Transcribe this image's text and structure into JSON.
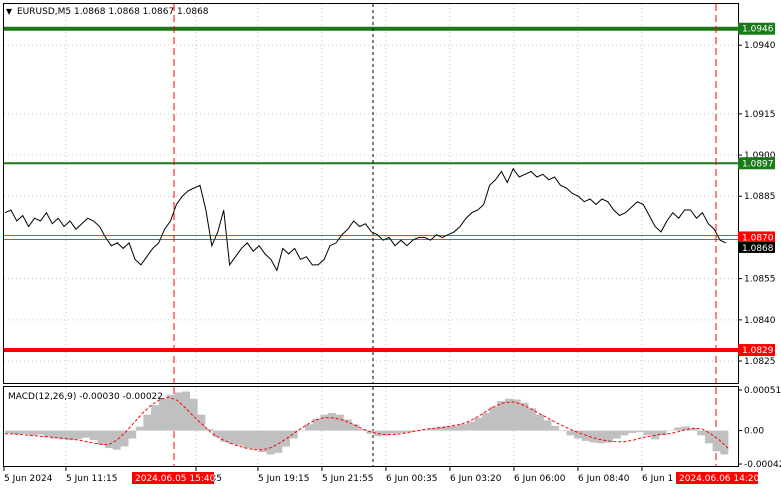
{
  "header": {
    "symbol_line": "EURUSD,M5  1.0868 1.0868 1.0867 1.0868",
    "macd_label": "MACD(12,26,9) -0.00030 -0.00022"
  },
  "colors": {
    "price_line": "#000000",
    "green_level": "#1a7a1a",
    "red_level": "#ff0000",
    "red_level_thin": "#ff3333",
    "macd_hist": "#c0c0c0",
    "signal_line": "#ff0000",
    "grid": "#c8c8c8",
    "background": "#ffffff"
  },
  "chart_data": {
    "type": "line",
    "symbol": "EURUSD",
    "timeframe": "M5",
    "ylim": [
      1.0817,
      1.0955
    ],
    "y_ticks": [
      "1.0940",
      "1.0915",
      "1.0900",
      "1.0885",
      "1.0855",
      "1.0840",
      "1.0825"
    ],
    "x_ticks": [
      "5 Jun 2024",
      "5 Jun 11:15",
      "16:35",
      "5 Jun 19:15",
      "5 Jun 21:55",
      "6 Jun 00:35",
      "6 Jun 03:20",
      "6 Jun 06:00",
      "6 Jun 08:40",
      "6 Jun 1"
    ],
    "x_highlight_labels": [
      "2024.06.05 15:40",
      "2024.06.06 14:20"
    ],
    "levels": [
      {
        "value": 1.0946,
        "label": "1.0946",
        "color": "green",
        "style": "thick"
      },
      {
        "value": 1.0897,
        "label": "1.0897",
        "color": "green",
        "style": "thin"
      },
      {
        "value": 1.087,
        "label": "1.0870",
        "color": "red",
        "style": "double"
      },
      {
        "value": 1.0829,
        "label": "1.0829",
        "color": "red",
        "style": "thick"
      }
    ],
    "current_price": {
      "value": 1.0868,
      "label": "1.0868"
    },
    "series": [
      {
        "values": [
          1.0879,
          1.088,
          1.0876,
          1.0878,
          1.0874,
          1.0877,
          1.0876,
          1.0879,
          1.0875,
          1.0877,
          1.0874,
          1.0876,
          1.0873,
          1.0875,
          1.0877,
          1.0876,
          1.0874,
          1.087,
          1.0867,
          1.0868,
          1.0866,
          1.0868,
          1.0862,
          1.086,
          1.0863,
          1.0866,
          1.0868,
          1.0873,
          1.0876,
          1.0882,
          1.0885,
          1.0887,
          1.0888,
          1.0889,
          1.088,
          1.0867,
          1.0872,
          1.088,
          1.086,
          1.0863,
          1.0866,
          1.0868,
          1.0865,
          1.0867,
          1.0864,
          1.0862,
          1.0858,
          1.0866,
          1.0864,
          1.0866,
          1.0862,
          1.0863,
          1.086,
          1.086,
          1.0862,
          1.0867,
          1.0868,
          1.0871,
          1.0873,
          1.0876,
          1.0874,
          1.0875,
          1.0872,
          1.0871,
          1.0869,
          1.087,
          1.0867,
          1.0869,
          1.0867,
          1.0869,
          1.087,
          1.087,
          1.0869,
          1.0871,
          1.087,
          1.0871,
          1.0872,
          1.0874,
          1.0877,
          1.0879,
          1.088,
          1.0882,
          1.0889,
          1.0891,
          1.0894,
          1.089,
          1.0895,
          1.0892,
          1.0893,
          1.0894,
          1.0892,
          1.0893,
          1.0891,
          1.0892,
          1.0889,
          1.0888,
          1.0886,
          1.0885,
          1.0883,
          1.0884,
          1.0882,
          1.0884,
          1.0883,
          1.088,
          1.0878,
          1.0879,
          1.0881,
          1.0883,
          1.0882,
          1.0878,
          1.0874,
          1.0872,
          1.0876,
          1.0879,
          1.0877,
          1.088,
          1.088,
          1.0877,
          1.0879,
          1.0875,
          1.0873,
          1.0869,
          1.0868
        ]
      }
    ]
  },
  "macd_data": {
    "ylim": [
      -0.00042,
      0.00051
    ],
    "y_ticks": [
      "0.00051",
      "0.00",
      "-0.00042"
    ],
    "histogram": [
      -3e-05,
      -5e-05,
      -4e-05,
      -6e-05,
      -5e-05,
      -8e-05,
      -0.0001,
      -0.00011,
      -0.00012,
      -0.00011,
      -9e-05,
      -0.00012,
      -0.00018,
      -0.00022,
      -0.00024,
      -0.0002,
      -0.0001,
      5e-05,
      0.0002,
      0.00032,
      0.0004,
      0.00045,
      0.00048,
      0.00049,
      0.0004,
      0.0002,
      2e-05,
      -8e-05,
      -0.00014,
      -0.00017,
      -0.00019,
      -0.00022,
      -0.00024,
      -0.00027,
      -0.0003,
      -0.00028,
      -0.0002,
      -0.0001,
      0.0,
      8e-05,
      0.00015,
      0.0002,
      0.00022,
      0.0002,
      0.00014,
      8e-05,
      2e-05,
      -4e-05,
      -7e-05,
      -6e-05,
      -4e-05,
      -3e-05,
      -2e-05,
      -1e-05,
      1e-05,
      3e-05,
      5e-05,
      6e-05,
      6e-05,
      8e-05,
      0.00011,
      0.00016,
      0.00022,
      0.0003,
      0.00037,
      0.0004,
      0.00039,
      0.00035,
      0.00028,
      0.0002,
      0.00013,
      6e-05,
      0.0,
      -6e-05,
      -0.0001,
      -0.00013,
      -0.00015,
      -0.00016,
      -0.00015,
      -0.0001,
      -6e-05,
      -3e-05,
      -2e-05,
      -6e-05,
      -0.00011,
      -6e-05,
      0.0,
      4e-05,
      5e-05,
      3e-05,
      -6e-05,
      -0.00016,
      -0.00026,
      -0.0003
    ],
    "signal": [
      -4e-05,
      -4e-05,
      -5e-05,
      -6e-05,
      -7e-05,
      -8e-05,
      -9e-05,
      -0.0001,
      -0.00011,
      -0.00013,
      -0.00015,
      -0.00017,
      -0.00018,
      -0.00012,
      -2e-05,
      0.0001,
      0.00022,
      0.00032,
      0.00039,
      0.00042,
      0.00038,
      0.00028,
      0.00017,
      7e-05,
      -3e-05,
      -0.0001,
      -0.00015,
      -0.00019,
      -0.00022,
      -0.00024,
      -0.00024,
      -0.00021,
      -0.00015,
      -8e-05,
      0.0,
      7e-05,
      0.00013,
      0.00016,
      0.00016,
      0.00014,
      0.0001,
      5e-05,
      0.0,
      -3e-05,
      -5e-05,
      -5e-05,
      -4e-05,
      -2e-05,
      0.0,
      2e-05,
      3e-05,
      4e-05,
      6e-05,
      8e-05,
      0.00012,
      0.00018,
      0.00025,
      0.00031,
      0.00035,
      0.00036,
      0.00033,
      0.00028,
      0.00022,
      0.00016,
      0.0001,
      5e-05,
      0.0,
      -4e-05,
      -8e-05,
      -0.00011,
      -0.00013,
      -0.00014,
      -0.00014,
      -0.00012,
      -9e-05,
      -7e-05,
      -5e-05,
      -4e-05,
      -2e-05,
      1e-05,
      3e-05,
      2e-05,
      -4e-05,
      -0.00012,
      -0.00022
    ]
  }
}
